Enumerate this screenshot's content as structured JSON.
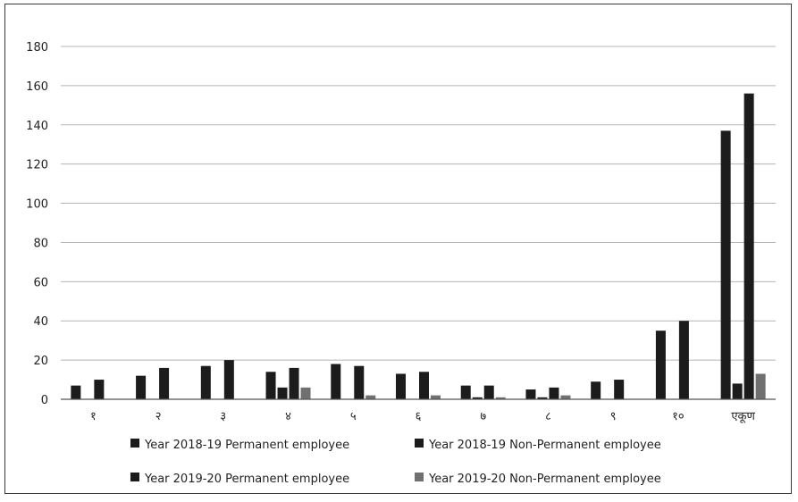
{
  "chart_data": {
    "type": "bar",
    "title": "",
    "xlabel": "",
    "ylabel": "",
    "ylim": [
      0,
      180
    ],
    "yticks": [
      0,
      20,
      40,
      60,
      80,
      100,
      120,
      140,
      160,
      180
    ],
    "grid": true,
    "legend_position": "bottom",
    "categories": [
      "१",
      "२",
      "३",
      "४",
      "५",
      "६",
      "७",
      "८",
      "९",
      "१०",
      "एकूण"
    ],
    "series": [
      {
        "name": "Year 2018-19 Permanent employee",
        "color": "#1c1c1c",
        "values": [
          7,
          12,
          17,
          14,
          18,
          13,
          7,
          5,
          9,
          35,
          137
        ]
      },
      {
        "name": "Year 2018-19 Non-Permanent employee",
        "color": "#1c1c1c",
        "values": [
          0,
          0,
          0,
          6,
          0,
          0,
          1,
          1,
          0,
          0,
          8
        ]
      },
      {
        "name": "Year 2019-20 Permanent employee",
        "color": "#1c1c1c",
        "values": [
          10,
          16,
          20,
          16,
          17,
          14,
          7,
          6,
          10,
          40,
          156
        ]
      },
      {
        "name": "Year 2019-20 Non-Permanent employee",
        "color": "#707070",
        "values": [
          0,
          0,
          0,
          6,
          2,
          2,
          1,
          2,
          0,
          0,
          13
        ]
      }
    ]
  }
}
